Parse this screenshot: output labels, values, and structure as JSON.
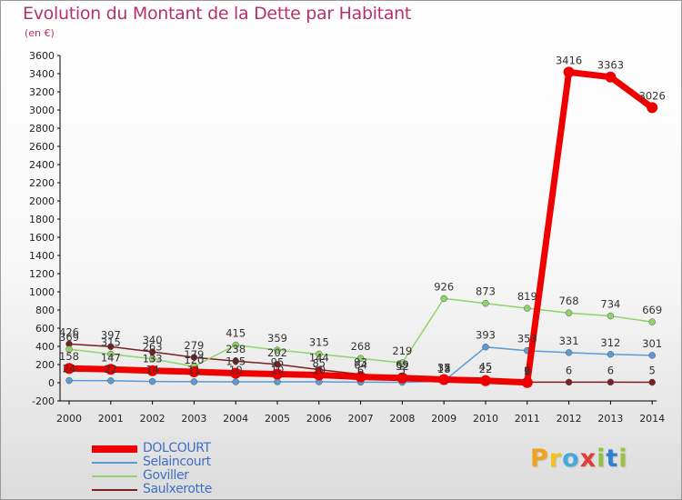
{
  "title": "Evolution du Montant de la Dette par Habitant",
  "subtitle": "(en €)",
  "logo": "Proxiti",
  "logo_colors": [
    "#f0a21c",
    "#f4c21a",
    "#46a8dc",
    "#e23b3b",
    "#8cc43f",
    "#2f7fd0",
    "#9dc23b"
  ],
  "chart_data": {
    "type": "line",
    "title": "Evolution du Montant de la Dette par Habitant",
    "ylabel": "(en €)",
    "xlabel": "",
    "ylim": [
      -200,
      3600
    ],
    "ytick_step": 200,
    "grid": false,
    "legend_position": "bottom-left",
    "categories": [
      "2000",
      "2001",
      "2002",
      "2003",
      "2004",
      "2005",
      "2006",
      "2007",
      "2008",
      "2009",
      "2010",
      "2011",
      "2012",
      "2013",
      "2014"
    ],
    "series": [
      {
        "name": "DOLCOURT",
        "color": "#ee0000",
        "values": [
          158,
          147,
          133,
          120,
          105,
          95,
          85,
          64,
          52,
          35,
          22,
          2,
          3416,
          3363,
          3026
        ],
        "labels": [
          "158",
          "147",
          "133",
          "120",
          "105",
          "95",
          "85",
          "64",
          "52",
          "35",
          "22",
          "2",
          "3416",
          "3363",
          "3026"
        ]
      },
      {
        "name": "Selaincourt",
        "color": "#5b9bd5",
        "values": [
          24,
          22,
          14,
          11,
          10,
          10,
          10,
          6,
          5,
          18,
          393,
          353,
          331,
          312,
          301
        ],
        "labels": [
          "24",
          "22",
          "14",
          "11",
          "10",
          "10",
          "10",
          "6",
          "5",
          "18",
          "393",
          "353",
          "331",
          "312",
          "301"
        ]
      },
      {
        "name": "Goviller",
        "color": "#8fd36a",
        "values": [
          369,
          315,
          263,
          179,
          415,
          359,
          315,
          268,
          219,
          926,
          873,
          819,
          768,
          734,
          669
        ],
        "labels": [
          "369",
          "315",
          "263",
          "179",
          "415",
          "359",
          "315",
          "268",
          "219",
          "926",
          "873",
          "819",
          "768",
          "734",
          "669"
        ]
      },
      {
        "name": "Saulxerotte",
        "color": "#7a2020",
        "values": [
          426,
          397,
          340,
          279,
          238,
          202,
          144,
          93,
          69,
          37,
          45,
          6,
          6,
          6,
          5
        ],
        "labels": [
          "426",
          "397",
          "340",
          "279",
          "238",
          "202",
          "144",
          "93",
          "69",
          "37",
          "45",
          "6",
          "6",
          "6",
          "5"
        ]
      }
    ]
  }
}
